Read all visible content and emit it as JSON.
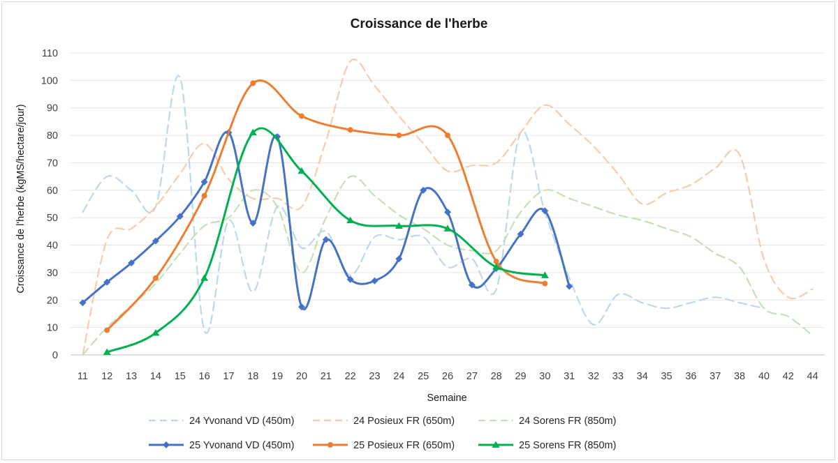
{
  "chart_data": {
    "type": "line",
    "title": "Croissance de l'herbe",
    "xlabel": "Semaine",
    "ylabel": "Croissance de l'herbe (kgMS/hectare/jour)",
    "ylim": [
      0,
      110
    ],
    "ytick_step": 10,
    "grid": "horizontal",
    "legend_position": "bottom",
    "categories": [
      "11",
      "12",
      "13",
      "14",
      "15",
      "16",
      "17",
      "18",
      "19",
      "20",
      "21",
      "22",
      "23",
      "24",
      "25",
      "26",
      "27",
      "28",
      "29",
      "30",
      "31",
      "32",
      "33",
      "34",
      "35",
      "36",
      "37",
      "38",
      "40",
      "42",
      "44"
    ],
    "series": [
      {
        "name": "24 Yvonand VD (450m)",
        "color": "#bdd7ee",
        "dash": true,
        "marker": "none",
        "values": [
          52,
          65,
          60,
          54,
          101,
          9,
          49,
          23,
          54,
          39,
          45,
          29,
          43,
          42,
          43,
          32,
          35,
          24,
          81,
          52,
          28,
          11,
          22,
          19,
          17,
          19,
          21,
          19,
          17,
          null,
          null
        ]
      },
      {
        "name": "24 Posieux FR (650m)",
        "color": "#f8cbad",
        "dash": true,
        "marker": "none",
        "values": [
          0,
          42,
          46,
          54,
          66,
          77,
          64,
          57,
          57,
          54,
          78,
          107,
          98,
          87,
          77,
          67,
          69,
          70,
          81,
          91,
          84,
          76,
          66,
          55,
          59,
          62,
          68,
          73,
          35,
          21,
          24
        ]
      },
      {
        "name": "24 Sorens FR (850m)",
        "color": "#c5e0b4",
        "dash": true,
        "marker": "none",
        "values": [
          0,
          10,
          18,
          26,
          37,
          47,
          50,
          60,
          54,
          30,
          50,
          65,
          58,
          51,
          46,
          40,
          38,
          38,
          52,
          60,
          57,
          54,
          51,
          49,
          46,
          43,
          37,
          32,
          17,
          14,
          7
        ]
      },
      {
        "name": "25 Yvonand VD (450m)",
        "color": "#4472c4",
        "dash": false,
        "marker": "diamond",
        "values": [
          19,
          26.5,
          33.5,
          41.5,
          50.5,
          63,
          81,
          48,
          79.5,
          17.5,
          42,
          27.5,
          27,
          35,
          60,
          52,
          25.5,
          31.5,
          44,
          52.5,
          25,
          null,
          null,
          null,
          null,
          null,
          null,
          null,
          null,
          null,
          null
        ]
      },
      {
        "name": "25 Posieux FR (650m)",
        "color": "#ed7d31",
        "dash": false,
        "marker": "circle",
        "values": [
          null,
          9,
          null,
          28,
          null,
          58,
          null,
          99,
          null,
          87,
          null,
          82,
          null,
          80,
          null,
          80,
          null,
          34,
          null,
          26,
          null,
          null,
          null,
          null,
          null,
          null,
          null,
          null,
          null,
          null,
          null
        ]
      },
      {
        "name": "25 Sorens FR (850m)",
        "color": "#00b050",
        "dash": false,
        "marker": "triangle",
        "values": [
          null,
          1,
          null,
          8,
          null,
          28,
          null,
          81,
          null,
          67,
          null,
          49,
          null,
          47,
          null,
          46,
          null,
          32,
          null,
          29,
          null,
          null,
          null,
          null,
          null,
          null,
          null,
          null,
          null,
          null,
          null
        ]
      }
    ]
  }
}
